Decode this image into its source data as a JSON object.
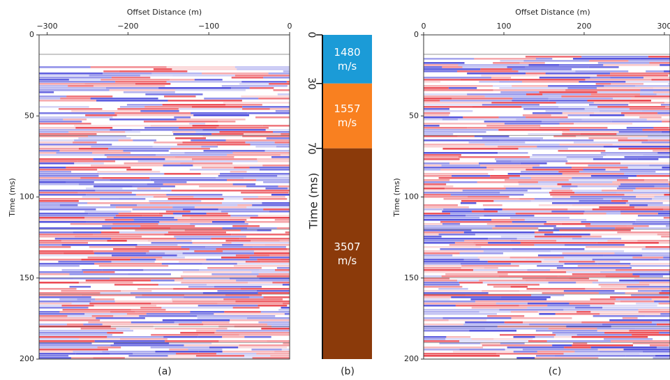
{
  "chart_data": [
    {
      "type": "seismic",
      "title": "Offset Distance (m)",
      "y_label": "Time (ms)",
      "caption": "(a)",
      "xlim": [
        -310,
        0
      ],
      "xticks": [
        {
          "value": -300,
          "label": "−300"
        },
        {
          "value": -200,
          "label": "−200"
        },
        {
          "value": -100,
          "label": "−100"
        },
        0
      ],
      "ylim": [
        0,
        200
      ],
      "yticks": [
        0,
        50,
        100,
        150,
        200
      ]
    },
    {
      "type": "layers",
      "y_label": "Time (ms)",
      "caption": "(b)",
      "ylim": [
        0,
        200
      ],
      "yticks": [
        0,
        30,
        70
      ],
      "values": [
        1480,
        1557,
        3507
      ],
      "value_labels": [
        "1480 m/s",
        "1557 m/s",
        "3507 m/s"
      ],
      "colors": [
        "#1b9bd7",
        "#f98020",
        "#8b3a0a"
      ]
    },
    {
      "type": "seismic",
      "title": "Offset Distance (m)",
      "y_label": "Time (ms)",
      "caption": "(c)",
      "xlim": [
        0,
        307
      ],
      "xticks": [
        0,
        100,
        200,
        300
      ],
      "ylim": [
        0,
        200
      ],
      "yticks": [
        0,
        50,
        100,
        150,
        200
      ]
    }
  ]
}
